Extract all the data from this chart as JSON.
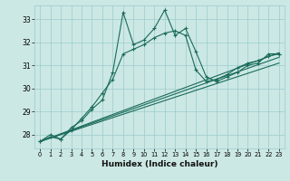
{
  "title": "",
  "xlabel": "Humidex (Indice chaleur)",
  "bg_color": "#cce8e4",
  "grid_color": "#99cccc",
  "line_color": "#1a6b5a",
  "xlim": [
    -0.5,
    23.5
  ],
  "ylim": [
    27.4,
    33.6
  ],
  "yticks": [
    28,
    29,
    30,
    31,
    32,
    33
  ],
  "xticks": [
    0,
    1,
    2,
    3,
    4,
    5,
    6,
    7,
    8,
    9,
    10,
    11,
    12,
    13,
    14,
    15,
    16,
    17,
    18,
    19,
    20,
    21,
    22,
    23
  ],
  "series1_x": [
    0,
    1,
    2,
    3,
    4,
    5,
    6,
    7,
    8,
    9,
    10,
    11,
    12,
    13,
    14,
    15,
    16,
    17,
    18,
    19,
    20,
    21,
    22,
    23
  ],
  "series1_y": [
    27.7,
    28.0,
    27.8,
    28.3,
    28.6,
    29.1,
    29.5,
    30.7,
    33.3,
    31.9,
    32.1,
    32.6,
    33.4,
    32.3,
    32.6,
    31.6,
    30.5,
    30.3,
    30.5,
    30.7,
    31.0,
    31.1,
    31.5,
    31.5
  ],
  "series2_x": [
    0,
    1,
    2,
    3,
    4,
    5,
    6,
    7,
    8,
    9,
    10,
    11,
    12,
    13,
    14,
    15,
    16,
    17,
    18,
    19,
    20,
    21,
    22,
    23
  ],
  "series2_y": [
    27.7,
    27.9,
    27.8,
    28.2,
    28.7,
    29.2,
    29.8,
    30.4,
    31.5,
    31.7,
    31.9,
    32.2,
    32.4,
    32.5,
    32.3,
    30.8,
    30.3,
    30.4,
    30.6,
    30.9,
    31.1,
    31.2,
    31.4,
    31.5
  ],
  "series3_x": [
    0,
    23
  ],
  "series3_y": [
    27.7,
    31.55
  ],
  "series4_x": [
    0,
    23
  ],
  "series4_y": [
    27.7,
    31.35
  ],
  "series5_x": [
    0,
    23
  ],
  "series5_y": [
    27.7,
    31.1
  ]
}
